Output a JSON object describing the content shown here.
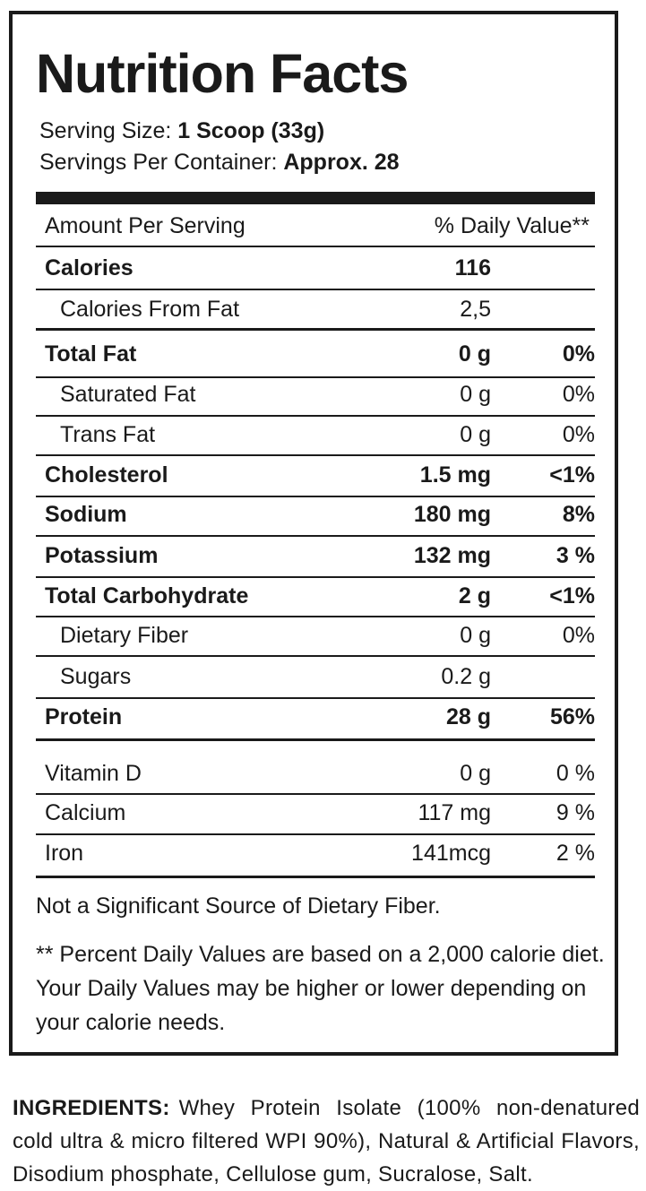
{
  "label": {
    "title": "Nutrition Facts",
    "serving_size_label": "Serving Size:",
    "serving_size_value": "1 Scoop (33g)",
    "servings_label": "Servings Per Container:",
    "servings_value": "Approx. 28",
    "header_left": "Amount Per Serving",
    "header_right": "% Daily Value**",
    "rows": [
      {
        "name": "Calories",
        "amount": "116",
        "dv": ""
      },
      {
        "name": "Calories From Fat",
        "amount": "2,5",
        "dv": ""
      },
      {
        "name": "Total Fat",
        "amount": "0 g",
        "dv": "0%"
      },
      {
        "name": "Saturated Fat",
        "amount": "0 g",
        "dv": "0%"
      },
      {
        "name": "Trans Fat",
        "amount": "0 g",
        "dv": "0%"
      },
      {
        "name": "Cholesterol",
        "amount": "1.5 mg",
        "dv": "<1%"
      },
      {
        "name": "Sodium",
        "amount": "180 mg",
        "dv": "8%"
      },
      {
        "name": "Potassium",
        "amount": "132 mg",
        "dv": "3 %"
      },
      {
        "name": "Total Carbohydrate",
        "amount": "2 g",
        "dv": "<1%"
      },
      {
        "name": "Dietary Fiber",
        "amount": "0 g",
        "dv": "0%"
      },
      {
        "name": "Sugars",
        "amount": "0.2 g",
        "dv": ""
      },
      {
        "name": "Protein",
        "amount": "28 g",
        "dv": "56%"
      },
      {
        "name": "Vitamin D",
        "amount": "0 g",
        "dv": "0 %"
      },
      {
        "name": "Calcium",
        "amount": "117 mg",
        "dv": "9 %"
      },
      {
        "name": "Iron",
        "amount": "141mcg",
        "dv": "2 %"
      }
    ],
    "note_fiber": "Not a Significant Source of Dietary Fiber.",
    "footnote": "** Percent Daily Values are based on a 2,000 calorie diet. Your Daily Values may be higher or lower depending on your calorie needs."
  },
  "ingredients": {
    "label": "INGREDIENTS:",
    "text": "Whey Protein Isolate (100% non-denatured cold ultra & micro filtered WPI 90%), Natural & Artificial Flavors, Disodium phosphate, Cellulose gum, Sucralose, Salt."
  }
}
